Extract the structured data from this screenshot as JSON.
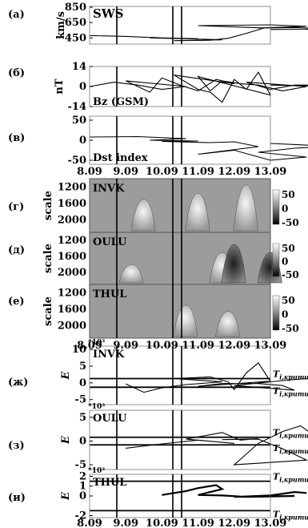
{
  "time_ticks": [
    "8.09",
    "9.09",
    "10.09",
    "11.09",
    "12.09",
    "13.09"
  ],
  "markers": {
    "kind": "vertical-lines",
    "dates": [
      "9.09",
      "10.09",
      "11.09"
    ]
  },
  "chart_data": [
    {
      "id": "a",
      "panel_label": "(а)",
      "type": "line",
      "series": [
        {
          "name": "SWS"
        }
      ],
      "ylabel": "km/s",
      "yticks": [
        "850",
        "650",
        "450"
      ],
      "ylim": [
        370,
        860
      ],
      "x": [
        8.0,
        8.3,
        8.6,
        8.9,
        9.2,
        9.5,
        9.8,
        10.1,
        10.4,
        10.55,
        10.7,
        10.85,
        11.0,
        11.3,
        11.6,
        11.9,
        12.2,
        12.5,
        12.8,
        13.0
      ],
      "values": [
        480,
        470,
        450,
        440,
        450,
        440,
        425,
        415,
        420,
        445,
        510,
        580,
        610,
        615,
        620,
        600,
        580,
        585,
        565,
        560
      ]
    },
    {
      "id": "b",
      "panel_label": "(б)",
      "type": "line",
      "series": [
        {
          "name": "Bz (GSM)"
        }
      ],
      "ylabel": "nT",
      "yticks": [
        "14",
        "0",
        "-14"
      ],
      "ylim": [
        -14,
        14
      ],
      "x": [
        8.0,
        8.2,
        8.4,
        8.6,
        8.8,
        9.0,
        9.2,
        9.3,
        9.45,
        9.6,
        9.75,
        9.9,
        10.1,
        10.3,
        10.4,
        10.5,
        10.6,
        10.7,
        10.8,
        10.9,
        11.0,
        11.1,
        11.2,
        11.35,
        11.5,
        11.7,
        11.9,
        12.1,
        12.3,
        12.5,
        12.7,
        12.9,
        13.0
      ],
      "values": [
        0,
        3,
        1,
        -2,
        0,
        4,
        -4,
        6,
        1,
        -3,
        5,
        2,
        8,
        -2,
        -4,
        -11,
        5,
        -2,
        10,
        -6,
        7,
        -3,
        4,
        2,
        1,
        -3,
        0,
        3,
        -2,
        1,
        1,
        0,
        1
      ]
    },
    {
      "id": "v",
      "panel_label": "(в)",
      "type": "line",
      "series": [
        {
          "name": "Dst index"
        }
      ],
      "yticks": [
        "50",
        "0",
        "-50"
      ],
      "ylim": [
        -60,
        60
      ],
      "x": [
        8.0,
        8.4,
        8.8,
        9.2,
        9.6,
        10.0,
        10.4,
        10.6,
        10.8,
        11.0,
        11.3,
        11.6,
        11.9,
        12.2,
        12.5,
        12.8,
        13.0
      ],
      "values": [
        8,
        9,
        4,
        0,
        -2,
        -3,
        -6,
        -4,
        -16,
        -35,
        -25,
        -50,
        -42,
        -30,
        -20,
        -15,
        -8
      ]
    },
    {
      "id": "g",
      "panel_label": "(г)",
      "type": "heatmap",
      "station": "INVK",
      "ylabel": "scale",
      "yticks": [
        "1200",
        "1600",
        "2000"
      ],
      "colorbar_ticks": [
        "50",
        "0",
        "-50"
      ],
      "zlim": [
        -50,
        50
      ],
      "features": [
        {
          "x": 9.15,
          "scale_top": 1500,
          "peak": 40
        },
        {
          "x": 9.6,
          "scale_top": 1350,
          "peak": 30
        },
        {
          "x": 10.7,
          "scale_top": 1150,
          "peak": 50
        }
      ]
    },
    {
      "id": "d",
      "panel_label": "(д)",
      "type": "heatmap",
      "station": "OULU",
      "ylabel": "scale",
      "yticks": [
        "1200",
        "1600",
        "2000"
      ],
      "colorbar_ticks": [
        "50",
        "0",
        "-50"
      ],
      "zlim": [
        -50,
        50
      ],
      "features": [
        {
          "x": 9.05,
          "scale_top": 1800,
          "peak": 40
        },
        {
          "x": 10.5,
          "scale_top": 1500,
          "peak": 50
        },
        {
          "x": 12.0,
          "scale_top": 1300,
          "peak": -50
        },
        {
          "x": 12.3,
          "scale_top": 1500,
          "peak": -40
        }
      ]
    },
    {
      "id": "e",
      "panel_label": "(е)",
      "type": "heatmap",
      "station": "THUL",
      "ylabel": "scale",
      "yticks": [
        "1200",
        "1600",
        "2000"
      ],
      "colorbar_ticks": [
        "50",
        "0",
        "-50"
      ],
      "zlim": [
        -50,
        50
      ],
      "features": [
        {
          "x": 9.5,
          "scale_top": 1500,
          "peak": 30
        },
        {
          "x": 10.55,
          "scale_top": 1650,
          "peak": 40
        }
      ]
    },
    {
      "id": "zh",
      "panel_label": "(ж)",
      "type": "line",
      "series": [
        {
          "name": "INVK"
        }
      ],
      "ylabel": "E",
      "exponent": "*10³",
      "yticks": [
        "10",
        "5",
        "0",
        "-5"
      ],
      "ylim": [
        -6.5,
        11
      ],
      "thresholds": [
        {
          "label": "Ti,крити",
          "value": 1.3
        },
        {
          "label": "Ti,крити",
          "value": -1.3
        }
      ],
      "x": [
        9.0,
        9.15,
        9.3,
        9.5,
        9.8,
        10.1,
        10.4,
        10.55,
        10.6,
        10.7,
        10.8,
        10.9,
        11.0,
        11.2,
        11.5,
        11.7,
        11.8,
        12.0,
        12.4,
        12.6
      ],
      "values": [
        -0.3,
        -2.8,
        -1.5,
        -0.5,
        0.3,
        1.3,
        1.8,
        0.3,
        -2.0,
        3.0,
        6.0,
        0.5,
        -1.0,
        -0.2,
        -0.2,
        -0.8,
        -2.2,
        -0.8,
        0.7,
        1.3
      ]
    },
    {
      "id": "z",
      "panel_label": "(з)",
      "type": "line",
      "series": [
        {
          "name": "OULU"
        }
      ],
      "ylabel": "E",
      "exponent": "*10³",
      "yticks": [
        "5",
        "0",
        "-5"
      ],
      "ylim": [
        -6,
        6.5
      ],
      "thresholds": [
        {
          "label": "Ti,крити",
          "value": 0.8
        },
        {
          "label": "Ti,крити",
          "value": -0.8
        }
      ],
      "x": [
        9.0,
        9.3,
        9.6,
        9.9,
        10.2,
        10.5,
        10.65,
        10.8,
        11.2,
        11.5,
        11.7,
        11.9,
        12.0,
        12.2,
        12.4,
        12.55,
        12.7
      ],
      "values": [
        -1.5,
        -0.6,
        0.2,
        -0.5,
        0.4,
        1.8,
        0.2,
        0.5,
        0.3,
        0.4,
        -1.6,
        -4.0,
        -5.0,
        -0.5,
        2.0,
        3.2,
        0.5
      ]
    },
    {
      "id": "i",
      "panel_label": "(и)",
      "type": "line",
      "series": [
        {
          "name": "THUL"
        }
      ],
      "ylabel": "E",
      "exponent": "*10³",
      "yticks": [
        "2",
        "1",
        "0",
        "-2"
      ],
      "ylim": [
        -2.2,
        2.2
      ],
      "thresholds": [
        {
          "label": "Ti,крити",
          "value": 1.5
        },
        {
          "label": "Ti,крити",
          "value": -1.5
        }
      ],
      "x": [
        9.3,
        9.4,
        9.5,
        9.6,
        9.7,
        9.75,
        9.8,
        11.0,
        11.2,
        11.4,
        11.6,
        11.8,
        12.0,
        12.2,
        12.3,
        12.5,
        12.6
      ],
      "values": [
        0.1,
        0.3,
        0.5,
        0.8,
        1.0,
        1.1,
        0.7,
        0.1,
        0.05,
        -0.1,
        -0.05,
        0.0,
        -0.1,
        0.0,
        0.05,
        0.4,
        0.3
      ]
    }
  ]
}
